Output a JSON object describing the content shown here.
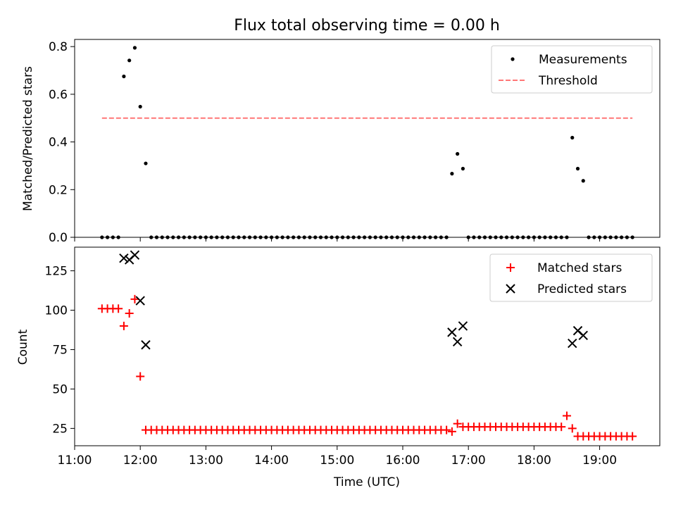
{
  "chart_data": [
    {
      "type": "scatter",
      "title": "Flux total observing time = 0.00 h",
      "xlabel": "",
      "ylabel": "Matched/Predicted stars",
      "xlim": [
        "11:00",
        "19:55"
      ],
      "ylim": [
        0,
        0.83
      ],
      "yticks": [
        "0.0",
        "0.2",
        "0.4",
        "0.6",
        "0.8"
      ],
      "grid": false,
      "legend_position": "top-right",
      "threshold": {
        "name": "Threshold",
        "value": 0.5,
        "x_start": "11:25",
        "x_end": "19:30",
        "color": "#ff7777"
      },
      "series": [
        {
          "name": "Measurements",
          "color": "#000000",
          "x": [
            "11:25",
            "11:30",
            "11:35",
            "11:40",
            "11:45",
            "11:50",
            "11:55",
            "12:00",
            "12:05",
            "12:10",
            "12:15",
            "12:20",
            "12:25",
            "12:30",
            "12:35",
            "12:40",
            "12:45",
            "12:50",
            "12:55",
            "13:00",
            "13:05",
            "13:10",
            "13:15",
            "13:20",
            "13:25",
            "13:30",
            "13:35",
            "13:40",
            "13:45",
            "13:50",
            "13:55",
            "14:00",
            "14:05",
            "14:10",
            "14:15",
            "14:20",
            "14:25",
            "14:30",
            "14:35",
            "14:40",
            "14:45",
            "14:50",
            "14:55",
            "15:00",
            "15:05",
            "15:10",
            "15:15",
            "15:20",
            "15:25",
            "15:30",
            "15:35",
            "15:40",
            "15:45",
            "15:50",
            "15:55",
            "16:00",
            "16:05",
            "16:10",
            "16:15",
            "16:20",
            "16:25",
            "16:30",
            "16:35",
            "16:40",
            "16:45",
            "16:50",
            "16:55",
            "17:00",
            "17:05",
            "17:10",
            "17:15",
            "17:20",
            "17:25",
            "17:30",
            "17:35",
            "17:40",
            "17:45",
            "17:50",
            "17:55",
            "18:00",
            "18:05",
            "18:10",
            "18:15",
            "18:20",
            "18:25",
            "18:30",
            "18:35",
            "18:40",
            "18:45",
            "18:50",
            "18:55",
            "19:00",
            "19:05",
            "19:10",
            "19:15",
            "19:20",
            "19:25",
            "19:30"
          ],
          "y": [
            0,
            0,
            0,
            0,
            0.675,
            0.742,
            0.795,
            0.548,
            0.31,
            0,
            0,
            0,
            0,
            0,
            0,
            0,
            0,
            0,
            0,
            0,
            0,
            0,
            0,
            0,
            0,
            0,
            0,
            0,
            0,
            0,
            0,
            0,
            0,
            0,
            0,
            0,
            0,
            0,
            0,
            0,
            0,
            0,
            0,
            0,
            0,
            0,
            0,
            0,
            0,
            0,
            0,
            0,
            0,
            0,
            0,
            0,
            0,
            0,
            0,
            0,
            0,
            0,
            0,
            0,
            0.267,
            0.35,
            0.288,
            0,
            0,
            0,
            0,
            0,
            0,
            0,
            0,
            0,
            0,
            0,
            0,
            0,
            0,
            0,
            0,
            0,
            0,
            0,
            0.418,
            0.288,
            0.237,
            0,
            0,
            0,
            0,
            0,
            0,
            0,
            0,
            0
          ]
        }
      ]
    },
    {
      "type": "scatter",
      "title": "",
      "xlabel": "Time (UTC)",
      "ylabel": "Count",
      "xlim": [
        "11:00",
        "19:55"
      ],
      "ylim": [
        14,
        140
      ],
      "xticks": [
        "11:00",
        "12:00",
        "13:00",
        "14:00",
        "15:00",
        "16:00",
        "17:00",
        "18:00",
        "19:00"
      ],
      "yticks": [
        "25",
        "50",
        "75",
        "100",
        "125"
      ],
      "grid": false,
      "legend_position": "top-right",
      "series": [
        {
          "name": "Matched stars",
          "marker": "+",
          "color": "#ff0000",
          "x": [
            "11:25",
            "11:30",
            "11:35",
            "11:40",
            "11:45",
            "11:50",
            "11:55",
            "12:00",
            "12:05",
            "12:10",
            "12:15",
            "12:20",
            "12:25",
            "12:30",
            "12:35",
            "12:40",
            "12:45",
            "12:50",
            "12:55",
            "13:00",
            "13:05",
            "13:10",
            "13:15",
            "13:20",
            "13:25",
            "13:30",
            "13:35",
            "13:40",
            "13:45",
            "13:50",
            "13:55",
            "14:00",
            "14:05",
            "14:10",
            "14:15",
            "14:20",
            "14:25",
            "14:30",
            "14:35",
            "14:40",
            "14:45",
            "14:50",
            "14:55",
            "15:00",
            "15:05",
            "15:10",
            "15:15",
            "15:20",
            "15:25",
            "15:30",
            "15:35",
            "15:40",
            "15:45",
            "15:50",
            "15:55",
            "16:00",
            "16:05",
            "16:10",
            "16:15",
            "16:20",
            "16:25",
            "16:30",
            "16:35",
            "16:40",
            "16:45",
            "16:50",
            "16:55",
            "17:00",
            "17:05",
            "17:10",
            "17:15",
            "17:20",
            "17:25",
            "17:30",
            "17:35",
            "17:40",
            "17:45",
            "17:50",
            "17:55",
            "18:00",
            "18:05",
            "18:10",
            "18:15",
            "18:20",
            "18:25",
            "18:30",
            "18:35",
            "18:40",
            "18:45",
            "18:50",
            "18:55",
            "19:00",
            "19:05",
            "19:10",
            "19:15",
            "19:20",
            "19:25",
            "19:30"
          ],
          "y": [
            101,
            101,
            101,
            101,
            90,
            98,
            107,
            58,
            24,
            24,
            24,
            24,
            24,
            24,
            24,
            24,
            24,
            24,
            24,
            24,
            24,
            24,
            24,
            24,
            24,
            24,
            24,
            24,
            24,
            24,
            24,
            24,
            24,
            24,
            24,
            24,
            24,
            24,
            24,
            24,
            24,
            24,
            24,
            24,
            24,
            24,
            24,
            24,
            24,
            24,
            24,
            24,
            24,
            24,
            24,
            24,
            24,
            24,
            24,
            24,
            24,
            24,
            24,
            24,
            23,
            28,
            26,
            26,
            26,
            26,
            26,
            26,
            26,
            26,
            26,
            26,
            26,
            26,
            26,
            26,
            26,
            26,
            26,
            26,
            26,
            33,
            25,
            20,
            20,
            20,
            20,
            20,
            20,
            20,
            20,
            20,
            20,
            20
          ]
        },
        {
          "name": "Predicted stars",
          "marker": "x",
          "color": "#000000",
          "x": [
            "11:45",
            "11:50",
            "11:55",
            "12:00",
            "12:05",
            "16:45",
            "16:50",
            "16:55",
            "18:35",
            "18:40",
            "18:45"
          ],
          "y": [
            133,
            132,
            135,
            106,
            78,
            86,
            80,
            90,
            79,
            87,
            84
          ]
        }
      ]
    }
  ]
}
